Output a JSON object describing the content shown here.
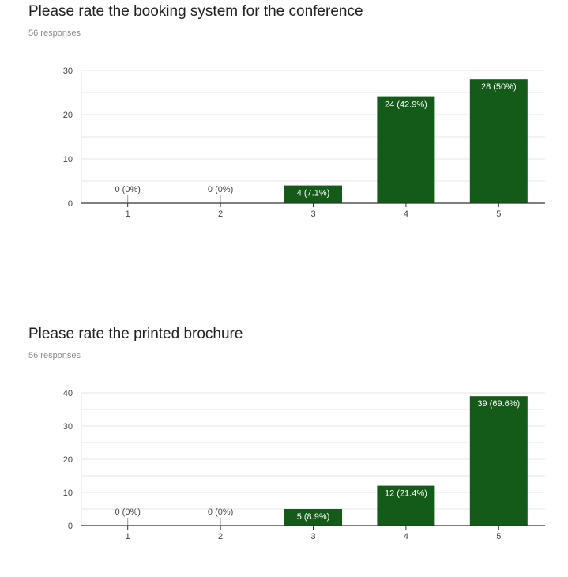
{
  "charts": [
    {
      "title": "Please rate the booking system for the conference",
      "subtitle": "56 responses"
    },
    {
      "title": "Please rate the printed brochure",
      "subtitle": "56 responses"
    }
  ],
  "colors": {
    "bar": "#145a18",
    "grid": "#e6e6e6",
    "axis": "#333333",
    "tick_text": "#444444"
  },
  "chart_data": [
    {
      "type": "bar",
      "title": "Please rate the booking system for the conference",
      "subtitle": "56 responses",
      "categories": [
        "1",
        "2",
        "3",
        "4",
        "5"
      ],
      "values": [
        0,
        0,
        4,
        24,
        28
      ],
      "data_labels": [
        "0 (0%)",
        "0 (0%)",
        "4 (7.1%)",
        "24 (42.9%)",
        "28 (50%)"
      ],
      "yticks": [
        0,
        10,
        20,
        30
      ],
      "ylim": [
        0,
        30
      ],
      "grid": true,
      "xlabel": "",
      "ylabel": ""
    },
    {
      "type": "bar",
      "title": "Please rate the printed brochure",
      "subtitle": "56 responses",
      "categories": [
        "1",
        "2",
        "3",
        "4",
        "5"
      ],
      "values": [
        0,
        0,
        5,
        12,
        39
      ],
      "data_labels": [
        "0 (0%)",
        "0 (0%)",
        "5 (8.9%)",
        "12 (21.4%)",
        "39 (69.6%)"
      ],
      "yticks": [
        0,
        10,
        20,
        30,
        40
      ],
      "ylim": [
        0,
        40
      ],
      "grid": true,
      "xlabel": "",
      "ylabel": ""
    }
  ]
}
